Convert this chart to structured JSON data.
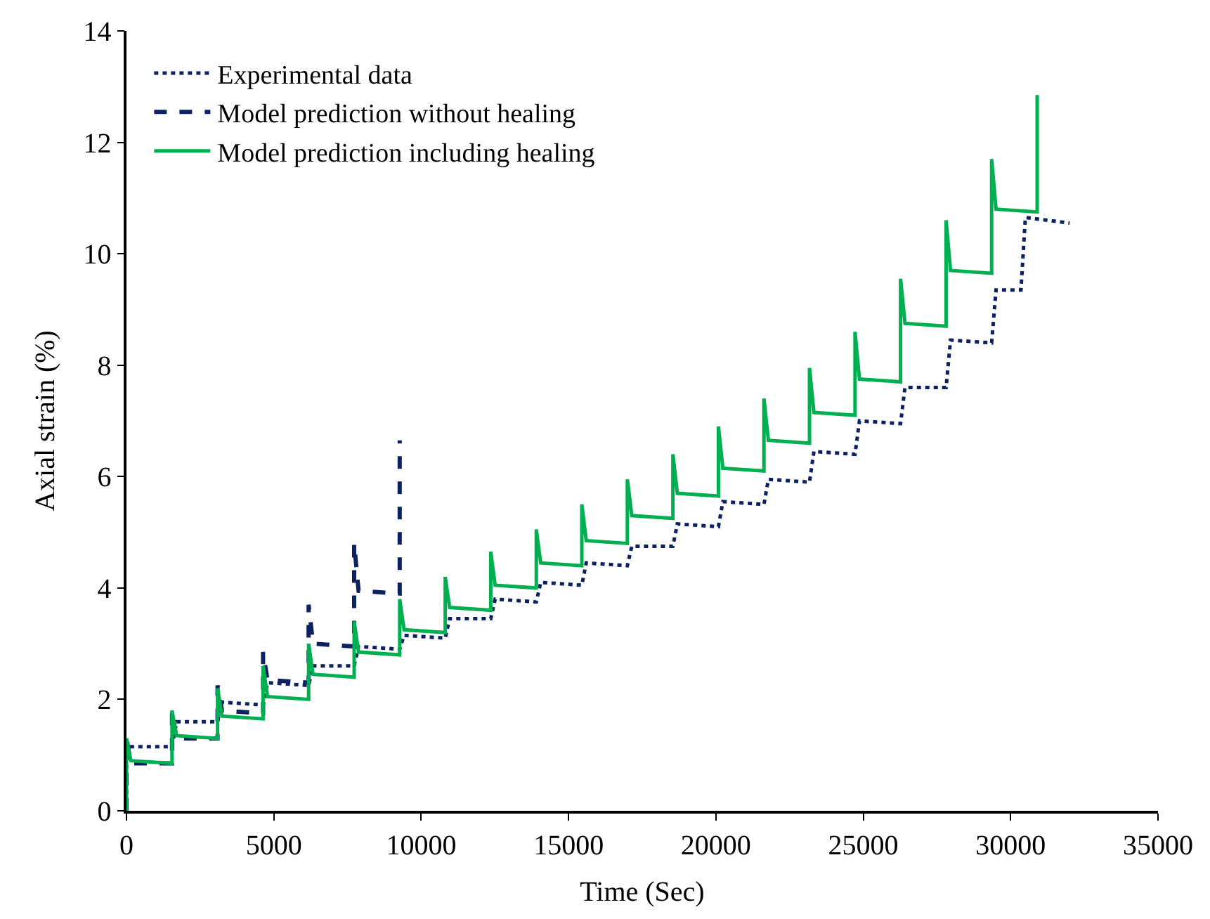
{
  "chart_data": {
    "type": "line",
    "xlabel": "Time (Sec)",
    "ylabel": "Axial strain (%)",
    "xlim": [
      0,
      35000
    ],
    "xticks": [
      0,
      5000,
      10000,
      15000,
      20000,
      25000,
      30000,
      35000
    ],
    "ylim": [
      0,
      14
    ],
    "yticks": [
      0,
      2,
      4,
      6,
      8,
      10,
      12,
      14
    ],
    "legend": "top left",
    "marker": "none",
    "series": [
      {
        "name": "Experimental data",
        "color": "#0b2161",
        "line_style": "dotted",
        "x": [
          0,
          0,
          1545,
          1700,
          3090,
          3240,
          4635,
          4785,
          6180,
          6330,
          7725,
          7875,
          9270,
          9420,
          10815,
          10965,
          12360,
          12510,
          13905,
          14055,
          15450,
          15600,
          16995,
          17145,
          18540,
          18690,
          20085,
          20235,
          21630,
          21780,
          23175,
          23325,
          24720,
          24870,
          26265,
          26415,
          27810,
          27960,
          29355,
          29505,
          30350,
          30500,
          32000
        ],
        "values": [
          0,
          1.15,
          1.15,
          1.6,
          1.6,
          1.95,
          1.9,
          2.3,
          2.25,
          2.6,
          2.6,
          2.95,
          2.9,
          3.15,
          3.1,
          3.45,
          3.45,
          3.8,
          3.75,
          4.1,
          4.05,
          4.45,
          4.4,
          4.75,
          4.75,
          5.15,
          5.1,
          5.55,
          5.5,
          5.95,
          5.9,
          6.45,
          6.4,
          7.0,
          6.95,
          7.6,
          7.6,
          8.45,
          8.4,
          9.35,
          9.35,
          10.65,
          10.55
        ]
      },
      {
        "name": "Model prediction without healing",
        "color": "#0b2161",
        "line_style": "dashed",
        "x": [
          0,
          0,
          150,
          1545,
          1545,
          1695,
          3090,
          3090,
          3240,
          4635,
          4635,
          4785,
          6180,
          6180,
          6330,
          7725,
          7725,
          7875,
          9270,
          9270
        ],
        "values": [
          0,
          1.3,
          0.85,
          0.85,
          1.8,
          1.3,
          1.3,
          2.25,
          1.8,
          1.75,
          2.85,
          2.35,
          2.3,
          3.7,
          3.0,
          2.95,
          4.8,
          3.95,
          3.9,
          6.65
        ]
      },
      {
        "name": "Model prediction including healing",
        "color": "#00b050",
        "line_style": "solid",
        "x": [
          0,
          0,
          150,
          1545,
          1545,
          1695,
          3090,
          3090,
          3240,
          4635,
          4635,
          4785,
          6180,
          6180,
          6330,
          7725,
          7725,
          7875,
          9270,
          9270,
          9420,
          10815,
          10815,
          10965,
          12360,
          12360,
          12510,
          13905,
          13905,
          14055,
          15450,
          15450,
          15600,
          16995,
          16995,
          17145,
          18540,
          18540,
          18690,
          20085,
          20085,
          20235,
          21630,
          21630,
          21780,
          23175,
          23175,
          23325,
          24720,
          24720,
          24870,
          26265,
          26265,
          26415,
          27810,
          27810,
          27960,
          29355,
          29355,
          29505,
          30900,
          30900
        ],
        "values": [
          0,
          1.3,
          0.9,
          0.85,
          1.8,
          1.35,
          1.3,
          2.2,
          1.7,
          1.65,
          2.6,
          2.05,
          2.0,
          3.0,
          2.45,
          2.4,
          3.4,
          2.85,
          2.8,
          3.8,
          3.25,
          3.2,
          4.2,
          3.65,
          3.6,
          4.65,
          4.05,
          4.0,
          5.05,
          4.45,
          4.4,
          5.5,
          4.85,
          4.8,
          5.95,
          5.3,
          5.25,
          6.4,
          5.7,
          5.65,
          6.9,
          6.15,
          6.1,
          7.4,
          6.65,
          6.6,
          7.95,
          7.15,
          7.1,
          8.6,
          7.75,
          7.7,
          9.55,
          8.75,
          8.7,
          10.6,
          9.7,
          9.65,
          11.7,
          10.8,
          10.75,
          12.85
        ]
      }
    ]
  }
}
